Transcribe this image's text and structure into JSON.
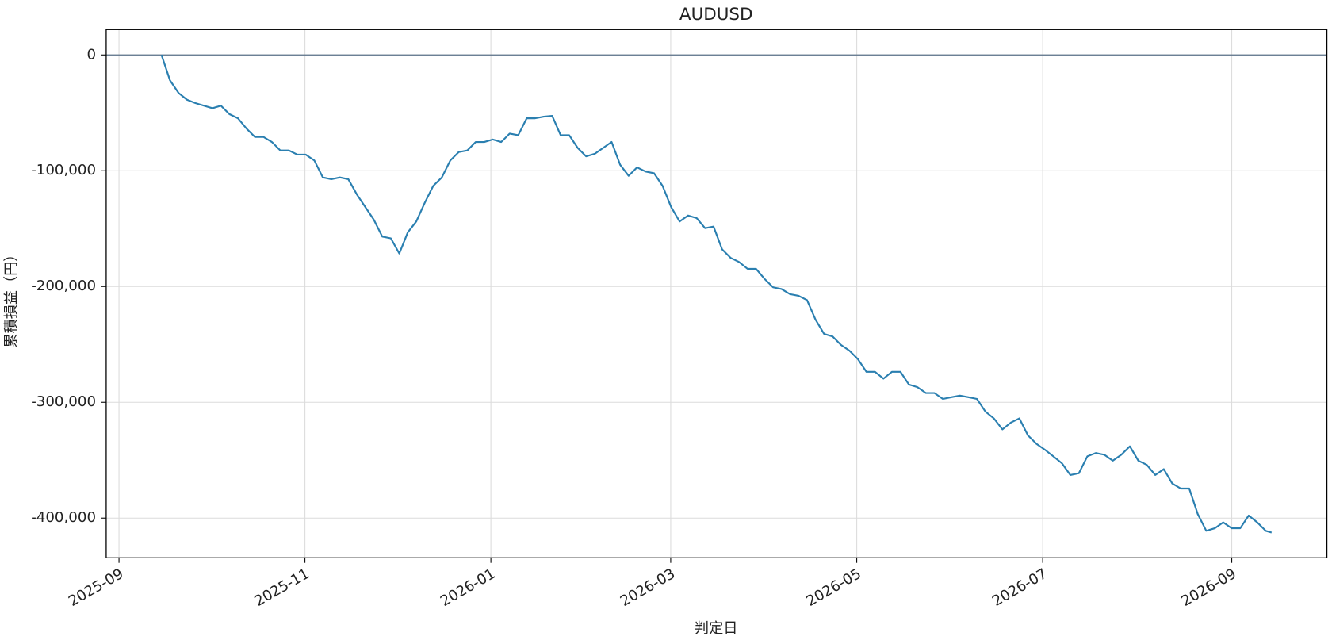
{
  "chart_data": {
    "type": "line",
    "title": "AUDUSD",
    "x_label": "判定日",
    "y_label": "累積損益（円）",
    "color": "#2a7fb0",
    "grid": true,
    "hline": 0,
    "hline_color": "#5a7088",
    "xlim": [
      2025.6543,
      2026.7513
    ],
    "xticks": [
      {
        "value": 2025.6658,
        "label": "2025-09"
      },
      {
        "value": 2025.8329,
        "label": "2025-11"
      },
      {
        "value": 2026.0,
        "label": "2026-01"
      },
      {
        "value": 2026.1616,
        "label": "2026-03"
      },
      {
        "value": 2026.3288,
        "label": "2026-05"
      },
      {
        "value": 2026.4959,
        "label": "2026-07"
      },
      {
        "value": 2026.6658,
        "label": "2026-09"
      }
    ],
    "ylim": [
      -434300,
      21900
    ],
    "yticks": [
      {
        "value": -400000,
        "label": "-400,000"
      },
      {
        "value": -300000,
        "label": "-300,000"
      },
      {
        "value": -200000,
        "label": "-200,000"
      },
      {
        "value": -100000,
        "label": "-100,000"
      },
      0
    ],
    "x": [
      2025.704,
      2025.7116,
      2025.7193,
      2025.7269,
      2025.7345,
      2025.7421,
      2025.7498,
      2025.7574,
      2025.765,
      2025.7727,
      2025.7803,
      2025.7879,
      2025.7956,
      2025.8032,
      2025.8108,
      2025.8185,
      2025.8261,
      2025.8337,
      2025.8414,
      2025.849,
      2025.8566,
      2025.8643,
      2025.8719,
      2025.8795,
      2025.8872,
      2025.8948,
      2025.9024,
      2025.9101,
      2025.9177,
      2025.9253,
      2025.933,
      2025.9406,
      2025.9482,
      2025.9559,
      2025.9635,
      2025.9711,
      2025.9788,
      2025.9864,
      2025.994,
      2026.0017,
      2026.0093,
      2026.0169,
      2026.0246,
      2026.0322,
      2026.0398,
      2026.0475,
      2026.0551,
      2026.0627,
      2026.0704,
      2026.078,
      2026.0856,
      2026.0933,
      2026.1009,
      2026.1085,
      2026.1162,
      2026.1238,
      2026.1314,
      2026.1391,
      2026.1467,
      2026.1543,
      2026.162,
      2026.1696,
      2026.1772,
      2026.1849,
      2026.1925,
      2026.2001,
      2026.2078,
      2026.2154,
      2026.223,
      2026.2307,
      2026.2383,
      2026.2459,
      2026.2536,
      2026.2612,
      2026.2688,
      2026.2765,
      2026.2841,
      2026.2917,
      2026.2994,
      2026.307,
      2026.3146,
      2026.3223,
      2026.3299,
      2026.3375,
      2026.3452,
      2026.3528,
      2026.3604,
      2026.3681,
      2026.3757,
      2026.3833,
      2026.391,
      2026.3986,
      2026.4062,
      2026.4139,
      2026.4215,
      2026.4291,
      2026.4368,
      2026.4444,
      2026.452,
      2026.4597,
      2026.4673,
      2026.4749,
      2026.4826,
      2026.4902,
      2026.4978,
      2026.5055,
      2026.5131,
      2026.5207,
      2026.5284,
      2026.536,
      2026.5436,
      2026.5513,
      2026.5589,
      2026.5665,
      2026.5742,
      2026.5818,
      2026.5894,
      2026.5971,
      2026.6047,
      2026.6123,
      2026.62,
      2026.6276,
      2026.6352,
      2026.6429,
      2026.6505,
      2026.6581,
      2026.6658,
      2026.6734,
      2026.681,
      2026.6887,
      2026.6963,
      2026.7016
    ],
    "values": [
      0,
      -21900,
      -32800,
      -38700,
      -41600,
      -43800,
      -46000,
      -43800,
      -51100,
      -54700,
      -63500,
      -70800,
      -70800,
      -75200,
      -82500,
      -82500,
      -86100,
      -86100,
      -91200,
      -105800,
      -107300,
      -105800,
      -107300,
      -120400,
      -131400,
      -142300,
      -156900,
      -158400,
      -171500,
      -153300,
      -143800,
      -127700,
      -113100,
      -105800,
      -91200,
      -83900,
      -82500,
      -75200,
      -75200,
      -73000,
      -75200,
      -67900,
      -69300,
      -54700,
      -54700,
      -53300,
      -52600,
      -69300,
      -69300,
      -80300,
      -87600,
      -85400,
      -80300,
      -75200,
      -94900,
      -104400,
      -97100,
      -100700,
      -102200,
      -113100,
      -131400,
      -143800,
      -138700,
      -140900,
      -149600,
      -148200,
      -167900,
      -175200,
      -178800,
      -184700,
      -184700,
      -193400,
      -200700,
      -202200,
      -206600,
      -208000,
      -211700,
      -228500,
      -240900,
      -243100,
      -250400,
      -255500,
      -262800,
      -273700,
      -273700,
      -279600,
      -273700,
      -273700,
      -284700,
      -286900,
      -292000,
      -292000,
      -297100,
      -295600,
      -294200,
      -295600,
      -297100,
      -308000,
      -313900,
      -323400,
      -317500,
      -313900,
      -328500,
      -335800,
      -340900,
      -346700,
      -352600,
      -362800,
      -361300,
      -346700,
      -343800,
      -345300,
      -350400,
      -345300,
      -338000,
      -350400,
      -354000,
      -362800,
      -357700,
      -370100,
      -374500,
      -374500,
      -396400,
      -411000,
      -408800,
      -403700,
      -408800,
      -408800,
      -397800,
      -403700,
      -411000,
      -412500
    ]
  }
}
